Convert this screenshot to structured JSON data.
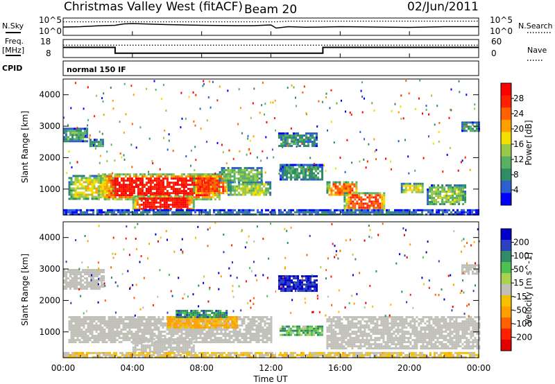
{
  "header": {
    "title": "Christmas Valley West (fitACF)",
    "beam": "Beam 20",
    "date": "02/Jun/2011"
  },
  "left_labels": {
    "nsky": "N.Sky",
    "freq_line1": "Freq.",
    "freq_line2": "[MHz]",
    "cpid": "CPID"
  },
  "right_labels": {
    "nsearch": "N.Search",
    "nave": "Nave"
  },
  "cpid_text": "normal 150 IF",
  "colors": {
    "power": [
      "#0000ff",
      "#2d5fd0",
      "#2f8c66",
      "#58b064",
      "#9ac84a",
      "#f2df00",
      "#ffa000",
      "#ff6000",
      "#ff2000",
      "#ff0000"
    ],
    "velocity": [
      "#0000c8",
      "#2a40c0",
      "#2f8c66",
      "#4cc050",
      "#a8d250",
      "#c0c0b8",
      "#f5c000",
      "#ffa000",
      "#ff6000",
      "#ff2000",
      "#e00000"
    ],
    "velocity_gray": "#c0c0b8"
  },
  "chart_data": [
    {
      "type": "line",
      "name": "noise_panel",
      "left_axis_label": "N.Sky",
      "left_ticks": [
        "10^5",
        "10^0"
      ],
      "right_axis_label": "N.Search",
      "right_ticks": [
        "10^5",
        "10^0"
      ],
      "x": [
        0,
        1,
        2,
        3,
        3.5,
        4,
        6,
        8,
        10,
        11,
        12,
        12.3,
        13,
        14,
        15,
        16,
        18,
        20,
        22,
        24
      ],
      "series": [
        {
          "name": "N.Sky",
          "style": "solid",
          "values": [
            0.48,
            0.5,
            0.55,
            0.58,
            0.66,
            0.68,
            0.62,
            0.58,
            0.56,
            0.56,
            0.6,
            0.42,
            0.5,
            0.47,
            0.48,
            0.5,
            0.48,
            0.46,
            0.5,
            0.5
          ]
        },
        {
          "name": "N.Search",
          "style": "dotted",
          "values": [
            0.78,
            0.78,
            0.78,
            0.78,
            0.78,
            0.78,
            0.78,
            0.78,
            0.78,
            0.78,
            0.78,
            0.78,
            0.82,
            0.82,
            0.82,
            0.82,
            0.82,
            0.82,
            0.82,
            0.82
          ]
        }
      ],
      "ylim": [
        0,
        1
      ]
    },
    {
      "type": "line",
      "name": "frequency_panel",
      "ylabel_left": "Freq. [MHz]",
      "left_ticks": [
        18,
        8
      ],
      "ylim_left": [
        8,
        18
      ],
      "right_axis_label": "Nave",
      "right_ticks": [
        60,
        0
      ],
      "ylim_right": [
        0,
        60
      ],
      "x": [
        0,
        3,
        3,
        12.3,
        12.3,
        15,
        15,
        24
      ],
      "series": [
        {
          "name": "Freq.",
          "style": "solid",
          "values": [
            13.6,
            13.6,
            10.4,
            10.4,
            10.4,
            10.4,
            13.6,
            13.6
          ]
        },
        {
          "name": "Nave",
          "style": "dotted",
          "values": [
            41,
            41,
            41,
            41,
            41,
            41,
            41,
            41
          ]
        }
      ]
    },
    {
      "type": "heatmap",
      "name": "power_panel",
      "ylabel": "Slant Range [km]",
      "xlim": [
        0,
        24
      ],
      "ylim": [
        180,
        4500
      ],
      "yticks": [
        1000,
        2000,
        3000,
        4000
      ],
      "colorbar_label": "Power [dB]",
      "colorbar_ticks": [
        "28",
        "24",
        "20",
        "16",
        "12",
        "8",
        "4"
      ],
      "colorbar_range": [
        0,
        30
      ],
      "regions": [
        {
          "t0": 0.0,
          "t1": 1.4,
          "r0": 2550,
          "r1": 2950,
          "level": 10
        },
        {
          "t0": 1.4,
          "t1": 2.3,
          "r0": 2350,
          "r1": 2600,
          "level": 9
        },
        {
          "t0": 0.3,
          "t1": 3.0,
          "r0": 700,
          "r1": 1450,
          "level": 16
        },
        {
          "t0": 2.0,
          "t1": 9.0,
          "r0": 700,
          "r1": 1500,
          "level": 27
        },
        {
          "t0": 4.0,
          "t1": 7.5,
          "r0": 350,
          "r1": 800,
          "level": 28
        },
        {
          "t0": 7.5,
          "t1": 9.5,
          "r0": 850,
          "r1": 1500,
          "level": 24
        },
        {
          "t0": 9.5,
          "t1": 12.0,
          "r0": 800,
          "r1": 1250,
          "level": 14
        },
        {
          "t0": 9.0,
          "t1": 11.5,
          "r0": 1250,
          "r1": 1700,
          "level": 12
        },
        {
          "t0": 12.3,
          "t1": 14.7,
          "r0": 2350,
          "r1": 2800,
          "level": 8
        },
        {
          "t0": 12.5,
          "t1": 15.0,
          "r0": 1300,
          "r1": 1800,
          "level": 9
        },
        {
          "t0": 15.2,
          "t1": 17.0,
          "r0": 800,
          "r1": 1250,
          "level": 22
        },
        {
          "t0": 16.2,
          "t1": 18.6,
          "r0": 350,
          "r1": 900,
          "level": 24
        },
        {
          "t0": 19.5,
          "t1": 20.8,
          "r0": 900,
          "r1": 1200,
          "level": 16
        },
        {
          "t0": 21.0,
          "t1": 23.2,
          "r0": 500,
          "r1": 1150,
          "level": 13
        },
        {
          "t0": 23.0,
          "t1": 24.0,
          "r0": 2850,
          "r1": 3150,
          "level": 9
        },
        {
          "t0": 0.0,
          "t1": 24.0,
          "r0": 180,
          "r1": 360,
          "level": 6
        }
      ]
    },
    {
      "type": "heatmap",
      "name": "velocity_panel",
      "ylabel": "Slant Range [km]",
      "xlabel": "Time UT",
      "xlim": [
        0,
        24
      ],
      "ylim": [
        180,
        4500
      ],
      "xticks": [
        "00:00",
        "04:00",
        "08:00",
        "12:00",
        "16:00",
        "20:00",
        "00:00"
      ],
      "yticks": [
        1000,
        2000,
        3000,
        4000
      ],
      "colorbar_label": "Velocity [m s^-1]",
      "colorbar_ticks": [
        "200",
        "100",
        "50",
        "15",
        "-15",
        "-50",
        "-100",
        "-200"
      ],
      "colorbar_range": [
        -250,
        250
      ],
      "regions": [
        {
          "t0": 0.0,
          "t1": 2.3,
          "r0": 2350,
          "r1": 3000,
          "level": 0
        },
        {
          "t0": 0.3,
          "t1": 12.0,
          "r0": 700,
          "r1": 1500,
          "level": 0
        },
        {
          "t0": 4.0,
          "t1": 7.5,
          "r0": 350,
          "r1": 800,
          "level": 0
        },
        {
          "t0": 6.0,
          "t1": 10.0,
          "r0": 1150,
          "r1": 1500,
          "level": -60
        },
        {
          "t0": 6.5,
          "t1": 9.5,
          "r0": 1500,
          "r1": 1700,
          "level": 70
        },
        {
          "t0": 12.3,
          "t1": 14.7,
          "r0": 2300,
          "r1": 2800,
          "level": 150
        },
        {
          "t0": 12.5,
          "t1": 15.0,
          "r0": 900,
          "r1": 1200,
          "level": 40
        },
        {
          "t0": 15.2,
          "t1": 24.0,
          "r0": 500,
          "r1": 1500,
          "level": 0
        },
        {
          "t0": 23.0,
          "t1": 24.0,
          "r0": 2850,
          "r1": 3150,
          "level": 0
        },
        {
          "t0": 0.0,
          "t1": 24.0,
          "r0": 180,
          "r1": 360,
          "level": -20
        }
      ]
    }
  ]
}
